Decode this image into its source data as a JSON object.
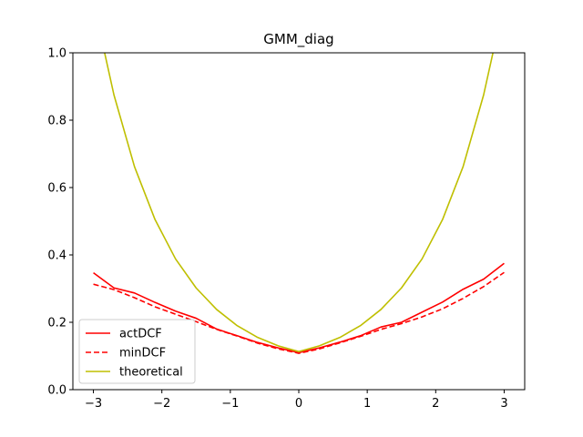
{
  "chart_data": {
    "type": "line",
    "title": "GMM_diag",
    "xlabel": "",
    "ylabel": "",
    "xlim": [
      -3.3,
      3.3
    ],
    "ylim": [
      0.0,
      1.0
    ],
    "xticks": [
      -3,
      -2,
      -1,
      0,
      1,
      2,
      3
    ],
    "xtick_labels": [
      "−3",
      "−2",
      "−1",
      "0",
      "1",
      "2",
      "3"
    ],
    "yticks": [
      0.0,
      0.2,
      0.4,
      0.6,
      0.8,
      1.0
    ],
    "ytick_labels": [
      "0.0",
      "0.2",
      "0.4",
      "0.6",
      "0.8",
      "1.0"
    ],
    "grid": false,
    "legend_position": "lower-left",
    "x": [
      -3.0,
      -2.7,
      -2.4,
      -2.1,
      -1.8,
      -1.5,
      -1.2,
      -0.9,
      -0.6,
      -0.3,
      0.0,
      0.3,
      0.6,
      0.9,
      1.2,
      1.5,
      1.8,
      2.1,
      2.4,
      2.7,
      3.0
    ],
    "series": [
      {
        "name": "actDCF",
        "color": "#ff0000",
        "style": "solid",
        "values": [
          0.347,
          0.302,
          0.287,
          0.259,
          0.233,
          0.212,
          0.18,
          0.16,
          0.14,
          0.124,
          0.11,
          0.124,
          0.141,
          0.16,
          0.186,
          0.2,
          0.23,
          0.26,
          0.298,
          0.328,
          0.375
        ]
      },
      {
        "name": "minDCF",
        "color": "#ff0000",
        "style": "dashed",
        "values": [
          0.313,
          0.297,
          0.273,
          0.246,
          0.224,
          0.202,
          0.179,
          0.159,
          0.138,
          0.121,
          0.108,
          0.121,
          0.139,
          0.158,
          0.179,
          0.196,
          0.216,
          0.24,
          0.271,
          0.306,
          0.348
        ]
      },
      {
        "name": "theoretical",
        "color": "#bfbf00",
        "style": "solid",
        "values": [
          1.15,
          0.875,
          0.662,
          0.505,
          0.388,
          0.302,
          0.238,
          0.19,
          0.155,
          0.13,
          0.113,
          0.13,
          0.155,
          0.19,
          0.238,
          0.302,
          0.388,
          0.505,
          0.662,
          0.875,
          1.15
        ]
      }
    ]
  }
}
